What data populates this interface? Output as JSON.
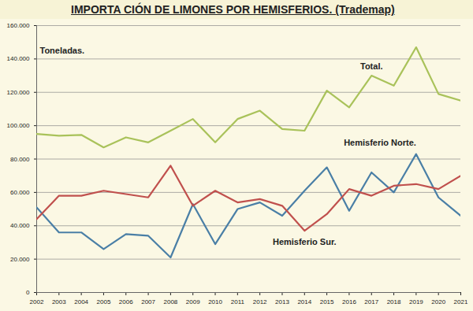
{
  "chart_data": {
    "type": "line",
    "title": "IMPORTA CIÓN DE LIMONES POR HEMISFERIOS. (Trademap)",
    "y_label": "Toneladas.",
    "x": [
      2002,
      2003,
      2004,
      2005,
      2006,
      2007,
      2008,
      2009,
      2010,
      2011,
      2012,
      2013,
      2014,
      2015,
      2016,
      2017,
      2018,
      2019,
      2020,
      2021
    ],
    "xlim": [
      2002,
      2021
    ],
    "xticks": [
      2002,
      2003,
      2004,
      2005,
      2006,
      2007,
      2008,
      2009,
      2010,
      2011,
      2012,
      2013,
      2014,
      2015,
      2016,
      2017,
      2018,
      2019,
      2020,
      2021
    ],
    "ylim": [
      0,
      160000
    ],
    "yticks": [
      0,
      {
        "value": 20000,
        "label": "20.000"
      },
      {
        "value": 40000,
        "label": "40.000"
      },
      {
        "value": 60000,
        "label": "60.000"
      },
      {
        "value": 80000,
        "label": "80.000"
      },
      {
        "value": 100000,
        "label": "100.000"
      },
      {
        "value": 120000,
        "label": "120.000"
      },
      {
        "value": 140000,
        "label": "140.000"
      },
      {
        "value": 160000,
        "label": "160.000"
      }
    ],
    "grid": true,
    "series": [
      {
        "name": "Total.",
        "color": "#a9c25a",
        "values": [
          95000,
          94000,
          94500,
          87000,
          93000,
          90000,
          97000,
          104000,
          90000,
          104000,
          109000,
          98000,
          97000,
          121000,
          111000,
          130000,
          124000,
          147000,
          119000,
          115000
        ]
      },
      {
        "name": "Hemisferio Norte.",
        "color": "#4a7fa6",
        "values": [
          51000,
          36000,
          36000,
          26000,
          35000,
          34000,
          21000,
          53000,
          29000,
          50000,
          54000,
          46000,
          61000,
          75000,
          49000,
          72000,
          60000,
          83000,
          57000,
          46000
        ]
      },
      {
        "name": "Hemisferio Sur.",
        "color": "#c0504d",
        "values": [
          44000,
          58000,
          58000,
          61000,
          59000,
          57000,
          76000,
          52000,
          61000,
          54000,
          56000,
          52000,
          37000,
          47000,
          62000,
          58000,
          64000,
          65000,
          62000,
          70000
        ]
      }
    ]
  }
}
